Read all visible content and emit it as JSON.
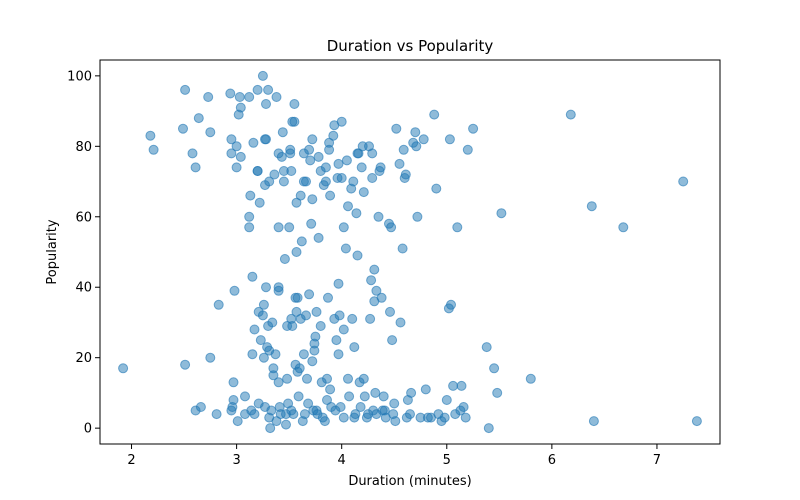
{
  "chart_data": {
    "type": "scatter",
    "title": "Duration vs Popularity",
    "xlabel": "Duration (minutes)",
    "ylabel": "Popularity",
    "xlim": [
      1.7,
      7.6
    ],
    "ylim": [
      -4.5,
      104.5
    ],
    "xticks": [
      2,
      3,
      4,
      5,
      6,
      7
    ],
    "yticks": [
      0,
      20,
      40,
      60,
      80,
      100
    ],
    "grid": false,
    "color": "#1f77b4",
    "points": [
      [
        1.92,
        17
      ],
      [
        2.18,
        83
      ],
      [
        2.21,
        79
      ],
      [
        2.49,
        85
      ],
      [
        2.51,
        96
      ],
      [
        2.51,
        18
      ],
      [
        2.58,
        78
      ],
      [
        2.61,
        74
      ],
      [
        2.61,
        5
      ],
      [
        2.64,
        88
      ],
      [
        2.66,
        6
      ],
      [
        2.73,
        94
      ],
      [
        2.75,
        84
      ],
      [
        2.75,
        20
      ],
      [
        2.81,
        4
      ],
      [
        2.83,
        35
      ],
      [
        2.94,
        95
      ],
      [
        2.95,
        82
      ],
      [
        2.95,
        78
      ],
      [
        2.95,
        5
      ],
      [
        2.96,
        6
      ],
      [
        2.97,
        8
      ],
      [
        2.97,
        13
      ],
      [
        2.98,
        39
      ],
      [
        3.0,
        80
      ],
      [
        3.0,
        74
      ],
      [
        3.01,
        2
      ],
      [
        3.02,
        89
      ],
      [
        3.03,
        94
      ],
      [
        3.04,
        91
      ],
      [
        3.04,
        77
      ],
      [
        3.08,
        9
      ],
      [
        3.08,
        4
      ],
      [
        3.12,
        94
      ],
      [
        3.12,
        60
      ],
      [
        3.12,
        57
      ],
      [
        3.13,
        66
      ],
      [
        3.14,
        5
      ],
      [
        3.15,
        43
      ],
      [
        3.15,
        21
      ],
      [
        3.16,
        81
      ],
      [
        3.17,
        28
      ],
      [
        3.17,
        4
      ],
      [
        3.2,
        96
      ],
      [
        3.2,
        73
      ],
      [
        3.2,
        73
      ],
      [
        3.21,
        33
      ],
      [
        3.21,
        7
      ],
      [
        3.22,
        64
      ],
      [
        3.23,
        25
      ],
      [
        3.25,
        100
      ],
      [
        3.25,
        32
      ],
      [
        3.26,
        35
      ],
      [
        3.26,
        20
      ],
      [
        3.27,
        82
      ],
      [
        3.27,
        69
      ],
      [
        3.27,
        6
      ],
      [
        3.28,
        82
      ],
      [
        3.28,
        92
      ],
      [
        3.28,
        40
      ],
      [
        3.29,
        23
      ],
      [
        3.3,
        96
      ],
      [
        3.3,
        29
      ],
      [
        3.31,
        70
      ],
      [
        3.31,
        22
      ],
      [
        3.31,
        3
      ],
      [
        3.32,
        0
      ],
      [
        3.33,
        5
      ],
      [
        3.34,
        30
      ],
      [
        3.35,
        17
      ],
      [
        3.35,
        15
      ],
      [
        3.36,
        72
      ],
      [
        3.37,
        21
      ],
      [
        3.38,
        94
      ],
      [
        3.38,
        2
      ],
      [
        3.4,
        78
      ],
      [
        3.4,
        39
      ],
      [
        3.4,
        40
      ],
      [
        3.4,
        57
      ],
      [
        3.4,
        13
      ],
      [
        3.41,
        6
      ],
      [
        3.42,
        4
      ],
      [
        3.43,
        77
      ],
      [
        3.44,
        84
      ],
      [
        3.45,
        70
      ],
      [
        3.45,
        73
      ],
      [
        3.46,
        48
      ],
      [
        3.47,
        4
      ],
      [
        3.47,
        1
      ],
      [
        3.48,
        29
      ],
      [
        3.48,
        14
      ],
      [
        3.49,
        7
      ],
      [
        3.5,
        57
      ],
      [
        3.51,
        79
      ],
      [
        3.51,
        78
      ],
      [
        3.52,
        73
      ],
      [
        3.52,
        31
      ],
      [
        3.52,
        5
      ],
      [
        3.53,
        87
      ],
      [
        3.53,
        29
      ],
      [
        3.54,
        4
      ],
      [
        3.55,
        92
      ],
      [
        3.55,
        87
      ],
      [
        3.56,
        37
      ],
      [
        3.56,
        18
      ],
      [
        3.57,
        50
      ],
      [
        3.57,
        64
      ],
      [
        3.57,
        33
      ],
      [
        3.58,
        37
      ],
      [
        3.58,
        16
      ],
      [
        3.59,
        9
      ],
      [
        3.6,
        17
      ],
      [
        3.61,
        66
      ],
      [
        3.61,
        31
      ],
      [
        3.62,
        53
      ],
      [
        3.63,
        2
      ],
      [
        3.64,
        78
      ],
      [
        3.64,
        70
      ],
      [
        3.64,
        21
      ],
      [
        3.65,
        4
      ],
      [
        3.66,
        70
      ],
      [
        3.66,
        32
      ],
      [
        3.67,
        14
      ],
      [
        3.68,
        7
      ],
      [
        3.69,
        79
      ],
      [
        3.69,
        38
      ],
      [
        3.7,
        76
      ],
      [
        3.71,
        58
      ],
      [
        3.72,
        82
      ],
      [
        3.72,
        65
      ],
      [
        3.72,
        19
      ],
      [
        3.73,
        5
      ],
      [
        3.74,
        22
      ],
      [
        3.74,
        24
      ],
      [
        3.75,
        26
      ],
      [
        3.76,
        5
      ],
      [
        3.76,
        33
      ],
      [
        3.77,
        4
      ],
      [
        3.78,
        77
      ],
      [
        3.78,
        54
      ],
      [
        3.8,
        73
      ],
      [
        3.8,
        29
      ],
      [
        3.81,
        13
      ],
      [
        3.82,
        3
      ],
      [
        3.83,
        69
      ],
      [
        3.84,
        2
      ],
      [
        3.85,
        70
      ],
      [
        3.85,
        74
      ],
      [
        3.86,
        14
      ],
      [
        3.86,
        8
      ],
      [
        3.87,
        37
      ],
      [
        3.88,
        79
      ],
      [
        3.88,
        81
      ],
      [
        3.89,
        66
      ],
      [
        3.89,
        11
      ],
      [
        3.9,
        6
      ],
      [
        3.92,
        83
      ],
      [
        3.93,
        86
      ],
      [
        3.93,
        31
      ],
      [
        3.94,
        5
      ],
      [
        3.95,
        25
      ],
      [
        3.96,
        71
      ],
      [
        3.97,
        75
      ],
      [
        3.97,
        41
      ],
      [
        3.97,
        21
      ],
      [
        3.98,
        32
      ],
      [
        3.99,
        6
      ],
      [
        4.0,
        87
      ],
      [
        4.0,
        71
      ],
      [
        4.02,
        57
      ],
      [
        4.02,
        28
      ],
      [
        4.02,
        3
      ],
      [
        4.04,
        51
      ],
      [
        4.05,
        76
      ],
      [
        4.06,
        63
      ],
      [
        4.06,
        14
      ],
      [
        4.07,
        9
      ],
      [
        4.09,
        68
      ],
      [
        4.1,
        31
      ],
      [
        4.11,
        70
      ],
      [
        4.12,
        23
      ],
      [
        4.12,
        3
      ],
      [
        4.13,
        4
      ],
      [
        4.14,
        61
      ],
      [
        4.15,
        49
      ],
      [
        4.15,
        78
      ],
      [
        4.16,
        78
      ],
      [
        4.17,
        13
      ],
      [
        4.18,
        6
      ],
      [
        4.19,
        74
      ],
      [
        4.2,
        80
      ],
      [
        4.21,
        67
      ],
      [
        4.21,
        14
      ],
      [
        4.22,
        9
      ],
      [
        4.24,
        3
      ],
      [
        4.25,
        4
      ],
      [
        4.26,
        80
      ],
      [
        4.27,
        31
      ],
      [
        4.28,
        42
      ],
      [
        4.29,
        71
      ],
      [
        4.29,
        78
      ],
      [
        4.3,
        5
      ],
      [
        4.31,
        45
      ],
      [
        4.31,
        36
      ],
      [
        4.32,
        10
      ],
      [
        4.33,
        39
      ],
      [
        4.33,
        4
      ],
      [
        4.35,
        60
      ],
      [
        4.36,
        73
      ],
      [
        4.37,
        74
      ],
      [
        4.38,
        37
      ],
      [
        4.39,
        5
      ],
      [
        4.4,
        9
      ],
      [
        4.41,
        5
      ],
      [
        4.42,
        3
      ],
      [
        4.45,
        58
      ],
      [
        4.46,
        33
      ],
      [
        4.47,
        57
      ],
      [
        4.48,
        25
      ],
      [
        4.49,
        4
      ],
      [
        4.5,
        7
      ],
      [
        4.51,
        2
      ],
      [
        4.52,
        85
      ],
      [
        4.55,
        75
      ],
      [
        4.56,
        30
      ],
      [
        4.58,
        51
      ],
      [
        4.59,
        79
      ],
      [
        4.6,
        71
      ],
      [
        4.61,
        72
      ],
      [
        4.62,
        3
      ],
      [
        4.63,
        8
      ],
      [
        4.65,
        4
      ],
      [
        4.66,
        10
      ],
      [
        4.68,
        81
      ],
      [
        4.7,
        84
      ],
      [
        4.71,
        80
      ],
      [
        4.72,
        60
      ],
      [
        4.75,
        3
      ],
      [
        4.78,
        82
      ],
      [
        4.8,
        11
      ],
      [
        4.82,
        3
      ],
      [
        4.85,
        3
      ],
      [
        4.88,
        89
      ],
      [
        4.9,
        68
      ],
      [
        4.92,
        4
      ],
      [
        4.95,
        2
      ],
      [
        4.98,
        3
      ],
      [
        5.0,
        8
      ],
      [
        5.02,
        34
      ],
      [
        5.03,
        82
      ],
      [
        5.04,
        35
      ],
      [
        5.06,
        12
      ],
      [
        5.08,
        4
      ],
      [
        5.1,
        57
      ],
      [
        5.13,
        5
      ],
      [
        5.14,
        12
      ],
      [
        5.16,
        6
      ],
      [
        5.18,
        3
      ],
      [
        5.2,
        79
      ],
      [
        5.25,
        85
      ],
      [
        5.38,
        23
      ],
      [
        5.4,
        0
      ],
      [
        5.45,
        17
      ],
      [
        5.48,
        10
      ],
      [
        5.52,
        61
      ],
      [
        5.8,
        14
      ],
      [
        6.18,
        89
      ],
      [
        6.38,
        63
      ],
      [
        6.4,
        2
      ],
      [
        6.68,
        57
      ],
      [
        7.25,
        70
      ],
      [
        7.38,
        2
      ]
    ]
  }
}
